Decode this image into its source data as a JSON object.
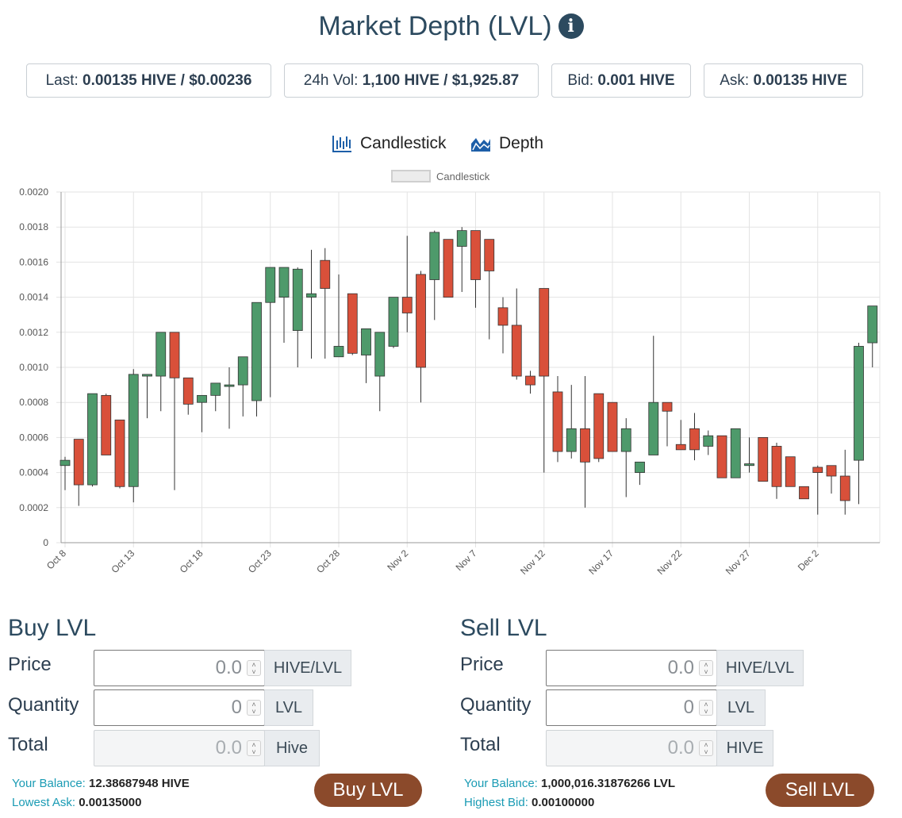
{
  "header": {
    "title": "Market Depth (LVL)",
    "info_icon": "info-circle-icon"
  },
  "stats": {
    "last_label": "Last:",
    "last_value": "0.00135 HIVE / $0.00236",
    "vol_label": "24h Vol:",
    "vol_value": "1,100 HIVE / $1,925.87",
    "bid_label": "Bid:",
    "bid_value": "0.001 HIVE",
    "ask_label": "Ask:",
    "ask_value": "0.00135 HIVE"
  },
  "view": {
    "candlestick_label": "Candlestick",
    "candlestick_icon": "candlestick-chart-icon",
    "depth_label": "Depth",
    "depth_icon": "area-chart-icon"
  },
  "chart_data": {
    "type": "candlestick",
    "legend": [
      "Candlestick"
    ],
    "legend_position": "top-center",
    "ylim": [
      0,
      0.002
    ],
    "y_ticks": [
      "0",
      "0.0002",
      "0.0004",
      "0.0006",
      "0.0008",
      "0.0010",
      "0.0012",
      "0.0014",
      "0.0016",
      "0.0018",
      "0.0020"
    ],
    "x_tick_labels": [
      "Oct 8",
      "Oct 13",
      "Oct 18",
      "Oct 23",
      "Oct 28",
      "Nov 2",
      "Nov 7",
      "Nov 12",
      "Nov 17",
      "Nov 22",
      "Nov 27",
      "Dec 2"
    ],
    "grid": true,
    "colors": {
      "up": "#4e9a6b",
      "down": "#d9503a",
      "wick": "#333333"
    },
    "candles": [
      {
        "date": "Oct 8",
        "o": 0.00044,
        "h": 0.00049,
        "l": 0.0003,
        "c": 0.00047
      },
      {
        "date": "Oct 9",
        "o": 0.00059,
        "h": 0.00059,
        "l": 0.00021,
        "c": 0.00033
      },
      {
        "date": "Oct 10",
        "o": 0.00033,
        "h": 0.00085,
        "l": 0.00032,
        "c": 0.00085
      },
      {
        "date": "Oct 11",
        "o": 0.00084,
        "h": 0.00085,
        "l": 0.0005,
        "c": 0.0005
      },
      {
        "date": "Oct 12",
        "o": 0.0007,
        "h": 0.0007,
        "l": 0.00031,
        "c": 0.00032
      },
      {
        "date": "Oct 13",
        "o": 0.00032,
        "h": 0.00099,
        "l": 0.00023,
        "c": 0.00096
      },
      {
        "date": "Oct 14",
        "o": 0.00095,
        "h": 0.00096,
        "l": 0.00071,
        "c": 0.00096
      },
      {
        "date": "Oct 15",
        "o": 0.00095,
        "h": 0.0012,
        "l": 0.00075,
        "c": 0.0012
      },
      {
        "date": "Oct 16",
        "o": 0.0012,
        "h": 0.0012,
        "l": 0.0003,
        "c": 0.00094
      },
      {
        "date": "Oct 17",
        "o": 0.00094,
        "h": 0.00094,
        "l": 0.00073,
        "c": 0.00079
      },
      {
        "date": "Oct 18",
        "o": 0.0008,
        "h": 0.00084,
        "l": 0.00063,
        "c": 0.00084
      },
      {
        "date": "Oct 19",
        "o": 0.00084,
        "h": 0.00091,
        "l": 0.00075,
        "c": 0.00091
      },
      {
        "date": "Oct 20",
        "o": 0.0009,
        "h": 0.001,
        "l": 0.00065,
        "c": 0.0009
      },
      {
        "date": "Oct 21",
        "o": 0.0009,
        "h": 0.00106,
        "l": 0.00072,
        "c": 0.00106
      },
      {
        "date": "Oct 22",
        "o": 0.00081,
        "h": 0.00137,
        "l": 0.00072,
        "c": 0.00137
      },
      {
        "date": "Oct 23",
        "o": 0.00137,
        "h": 0.00157,
        "l": 0.00083,
        "c": 0.00157
      },
      {
        "date": "Oct 24",
        "o": 0.0014,
        "h": 0.00157,
        "l": 0.00114,
        "c": 0.00157
      },
      {
        "date": "Oct 25",
        "o": 0.00121,
        "h": 0.00157,
        "l": 0.001,
        "c": 0.00156
      },
      {
        "date": "Oct 26",
        "o": 0.0014,
        "h": 0.00167,
        "l": 0.00105,
        "c": 0.00142
      },
      {
        "date": "Oct 27",
        "o": 0.00161,
        "h": 0.00168,
        "l": 0.00105,
        "c": 0.00145
      },
      {
        "date": "Oct 28",
        "o": 0.00106,
        "h": 0.00153,
        "l": 0.00106,
        "c": 0.00112
      },
      {
        "date": "Oct 29",
        "o": 0.00142,
        "h": 0.00142,
        "l": 0.00107,
        "c": 0.00108
      },
      {
        "date": "Oct 30",
        "o": 0.00107,
        "h": 0.00122,
        "l": 0.00091,
        "c": 0.00122
      },
      {
        "date": "Oct 31",
        "o": 0.00095,
        "h": 0.0012,
        "l": 0.00075,
        "c": 0.0012
      },
      {
        "date": "Nov 1",
        "o": 0.00112,
        "h": 0.0014,
        "l": 0.00111,
        "c": 0.0014
      },
      {
        "date": "Nov 2",
        "o": 0.0014,
        "h": 0.00175,
        "l": 0.0012,
        "c": 0.00131
      },
      {
        "date": "Nov 3",
        "o": 0.00153,
        "h": 0.00155,
        "l": 0.0008,
        "c": 0.001
      },
      {
        "date": "Nov 4",
        "o": 0.0015,
        "h": 0.00178,
        "l": 0.00127,
        "c": 0.00177
      },
      {
        "date": "Nov 5",
        "o": 0.00173,
        "h": 0.00173,
        "l": 0.0014,
        "c": 0.0014
      },
      {
        "date": "Nov 6",
        "o": 0.00169,
        "h": 0.0018,
        "l": 0.00143,
        "c": 0.00178
      },
      {
        "date": "Nov 7",
        "o": 0.00178,
        "h": 0.00178,
        "l": 0.00134,
        "c": 0.0015
      },
      {
        "date": "Nov 8",
        "o": 0.00173,
        "h": 0.00173,
        "l": 0.00116,
        "c": 0.00155
      },
      {
        "date": "Nov 9",
        "o": 0.00134,
        "h": 0.0014,
        "l": 0.00108,
        "c": 0.00124
      },
      {
        "date": "Nov 10",
        "o": 0.00124,
        "h": 0.00145,
        "l": 0.00093,
        "c": 0.00095
      },
      {
        "date": "Nov 11",
        "o": 0.00095,
        "h": 0.00098,
        "l": 0.00085,
        "c": 0.0009
      },
      {
        "date": "Nov 12",
        "o": 0.00145,
        "h": 0.00145,
        "l": 0.0004,
        "c": 0.00095
      },
      {
        "date": "Nov 13",
        "o": 0.00086,
        "h": 0.00095,
        "l": 0.00046,
        "c": 0.00052
      },
      {
        "date": "Nov 14",
        "o": 0.00052,
        "h": 0.0009,
        "l": 0.00048,
        "c": 0.00065
      },
      {
        "date": "Nov 15",
        "o": 0.00065,
        "h": 0.00095,
        "l": 0.0002,
        "c": 0.00046
      },
      {
        "date": "Nov 16",
        "o": 0.00085,
        "h": 0.00085,
        "l": 0.00046,
        "c": 0.00048
      },
      {
        "date": "Nov 17",
        "o": 0.0008,
        "h": 0.0008,
        "l": 0.00052,
        "c": 0.00052
      },
      {
        "date": "Nov 18",
        "o": 0.00052,
        "h": 0.00071,
        "l": 0.00026,
        "c": 0.00065
      },
      {
        "date": "Nov 19",
        "o": 0.0004,
        "h": 0.00046,
        "l": 0.00033,
        "c": 0.00046
      },
      {
        "date": "Nov 20",
        "o": 0.0005,
        "h": 0.00118,
        "l": 0.0005,
        "c": 0.0008
      },
      {
        "date": "Nov 21",
        "o": 0.0008,
        "h": 0.0008,
        "l": 0.00055,
        "c": 0.00075
      },
      {
        "date": "Nov 22",
        "o": 0.00056,
        "h": 0.0007,
        "l": 0.00053,
        "c": 0.00053
      },
      {
        "date": "Nov 23",
        "o": 0.00065,
        "h": 0.00074,
        "l": 0.00047,
        "c": 0.00053
      },
      {
        "date": "Nov 24",
        "o": 0.00055,
        "h": 0.00064,
        "l": 0.0005,
        "c": 0.00061
      },
      {
        "date": "Nov 25",
        "o": 0.00061,
        "h": 0.00061,
        "l": 0.00037,
        "c": 0.00037
      },
      {
        "date": "Nov 26",
        "o": 0.00037,
        "h": 0.00065,
        "l": 0.00037,
        "c": 0.00065
      },
      {
        "date": "Nov 27",
        "o": 0.00044,
        "h": 0.0006,
        "l": 0.0004,
        "c": 0.00045
      },
      {
        "date": "Nov 28",
        "o": 0.0006,
        "h": 0.0006,
        "l": 0.00035,
        "c": 0.00035
      },
      {
        "date": "Nov 29",
        "o": 0.00055,
        "h": 0.00057,
        "l": 0.00025,
        "c": 0.00032
      },
      {
        "date": "Nov 30",
        "o": 0.00049,
        "h": 0.00049,
        "l": 0.00032,
        "c": 0.00032
      },
      {
        "date": "Dec 1",
        "o": 0.00032,
        "h": 0.00032,
        "l": 0.00025,
        "c": 0.00025
      },
      {
        "date": "Dec 2",
        "o": 0.00043,
        "h": 0.00044,
        "l": 0.00016,
        "c": 0.0004
      },
      {
        "date": "Dec 3",
        "o": 0.00044,
        "h": 0.00044,
        "l": 0.00028,
        "c": 0.00038
      },
      {
        "date": "Dec 4",
        "o": 0.00038,
        "h": 0.00053,
        "l": 0.00016,
        "c": 0.00024
      },
      {
        "date": "Dec 5",
        "o": 0.00047,
        "h": 0.00114,
        "l": 0.00022,
        "c": 0.00112
      },
      {
        "date": "Dec 6",
        "o": 0.00114,
        "h": 0.00135,
        "l": 0.001,
        "c": 0.00135
      }
    ]
  },
  "buy": {
    "heading": "Buy LVL",
    "price_label": "Price",
    "price_value": "0.0",
    "price_unit": "HIVE/LVL",
    "quantity_label": "Quantity",
    "quantity_value": "0",
    "quantity_unit": "LVL",
    "total_label": "Total",
    "total_value": "0.0",
    "total_unit": "Hive",
    "balance_label": "Your Balance:",
    "balance_value": "12.38687948 HIVE",
    "ask_label": "Lowest Ask:",
    "ask_value": "0.00135000",
    "button_label": "Buy LVL"
  },
  "sell": {
    "heading": "Sell LVL",
    "price_label": "Price",
    "price_value": "0.0",
    "price_unit": "HIVE/LVL",
    "quantity_label": "Quantity",
    "quantity_value": "0",
    "quantity_unit": "LVL",
    "total_label": "Total",
    "total_value": "0.0",
    "total_unit": "HIVE",
    "balance_label": "Your Balance:",
    "balance_value": "1,000,016.31876266 LVL",
    "bid_label": "Highest Bid:",
    "bid_value": "0.00100000",
    "button_label": "Sell LVL"
  }
}
